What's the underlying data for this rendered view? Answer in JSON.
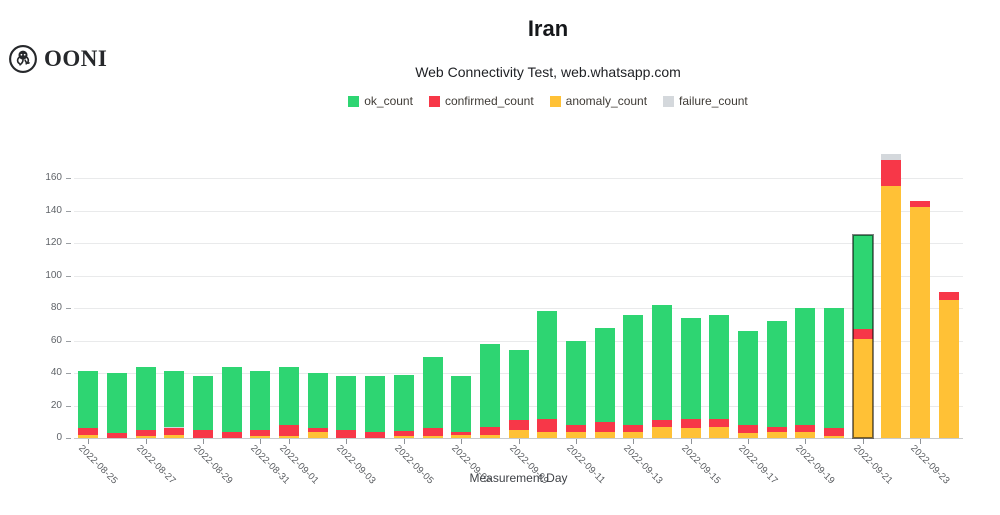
{
  "logo": {
    "text": "OONI"
  },
  "header": {
    "title": "Iran",
    "subtitle": "Web Connectivity Test, web.whatsapp.com"
  },
  "legend": [
    {
      "label": "ok_count",
      "color": "#2ed572"
    },
    {
      "label": "confirmed_count",
      "color": "#f73748"
    },
    {
      "label": "anomaly_count",
      "color": "#ffc136"
    },
    {
      "label": "failure_count",
      "color": "#d4d8dc"
    }
  ],
  "chart_data": {
    "type": "bar",
    "stacked": true,
    "title": "Iran",
    "subtitle": "Web Connectivity Test, web.whatsapp.com",
    "xlabel": "Measurement Day",
    "ylabel": "",
    "ylim": [
      0,
      175
    ],
    "yticks": [
      0,
      20,
      40,
      60,
      80,
      100,
      120,
      140,
      160
    ],
    "grid": "horizontal",
    "legend_position": "top",
    "selected_bar": "2022-09-21",
    "categories": [
      "2022-08-25",
      "2022-08-26",
      "2022-08-27",
      "2022-08-28",
      "2022-08-29",
      "2022-08-30",
      "2022-08-31",
      "2022-09-01",
      "2022-09-02",
      "2022-09-03",
      "2022-09-04",
      "2022-09-05",
      "2022-09-06",
      "2022-09-07",
      "2022-09-08",
      "2022-09-09",
      "2022-09-10",
      "2022-09-11",
      "2022-09-12",
      "2022-09-13",
      "2022-09-14",
      "2022-09-15",
      "2022-09-16",
      "2022-09-17",
      "2022-09-18",
      "2022-09-19",
      "2022-09-20",
      "2022-09-21",
      "2022-09-22",
      "2022-09-23",
      "2022-09-24"
    ],
    "x_ticks_shown": [
      "2022-08-25",
      "2022-08-27",
      "2022-08-29",
      "2022-08-31",
      "2022-09-01",
      "2022-09-03",
      "2022-09-05",
      "2022-09-07",
      "2022-09-09",
      "2022-09-11",
      "2022-09-13",
      "2022-09-15",
      "2022-09-17",
      "2022-09-19",
      "2022-09-21",
      "2022-09-23"
    ],
    "stack_order": [
      "anomaly_count",
      "confirmed_count",
      "failure_count",
      "ok_count"
    ],
    "series": [
      {
        "name": "ok_count",
        "color": "#2ed572",
        "values": [
          35,
          37,
          39,
          34,
          33,
          40,
          36,
          36,
          34,
          33,
          34,
          35,
          44,
          34,
          51,
          43,
          66,
          52,
          58,
          68,
          71,
          62,
          64,
          58,
          65,
          72,
          74,
          58,
          0,
          0,
          0
        ]
      },
      {
        "name": "confirmed_count",
        "color": "#f73748",
        "values": [
          4,
          3,
          4,
          4,
          5,
          4,
          4,
          7,
          2,
          5,
          4,
          3,
          5,
          2,
          5,
          6,
          8,
          4,
          6,
          4,
          4,
          6,
          5,
          5,
          3,
          4,
          5,
          6,
          16,
          4,
          5
        ]
      },
      {
        "name": "anomaly_count",
        "color": "#ffc136",
        "values": [
          2,
          0,
          1,
          2,
          0,
          0,
          1,
          1,
          4,
          0,
          0,
          1,
          1,
          2,
          2,
          5,
          4,
          4,
          4,
          4,
          7,
          6,
          7,
          3,
          4,
          4,
          1,
          61,
          155,
          142,
          85
        ]
      },
      {
        "name": "failure_count",
        "color": "#d4d8dc",
        "values": [
          0,
          0,
          0,
          1,
          0,
          0,
          0,
          0,
          0,
          0,
          0,
          0,
          0,
          0,
          0,
          0,
          0,
          0,
          0,
          0,
          0,
          0,
          0,
          0,
          0,
          0,
          0,
          0,
          4,
          0,
          0
        ]
      }
    ]
  }
}
